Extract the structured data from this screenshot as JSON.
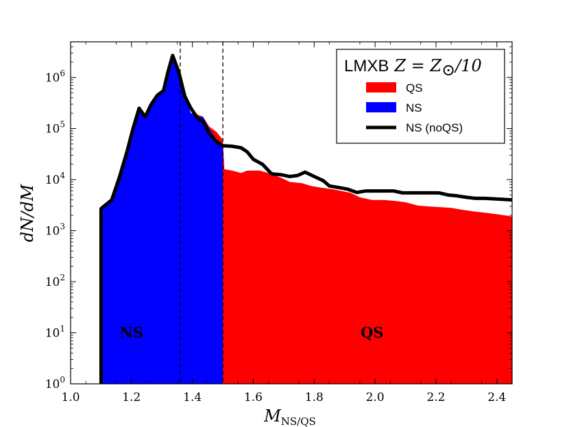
{
  "chart_data": {
    "type": "area",
    "xlabel": "M",
    "xlabel_subscript": "NS/QS",
    "ylabel": "dN/dM",
    "xlim": [
      1.0,
      2.45
    ],
    "ylim": [
      1,
      5000000
    ],
    "yscale": "log",
    "xticks": [
      "1.0",
      "1.2",
      "1.4",
      "1.6",
      "1.8",
      "2.0",
      "2.2",
      "2.4"
    ],
    "xtick_values": [
      1.0,
      1.2,
      1.4,
      1.6,
      1.8,
      2.0,
      2.2,
      2.4
    ],
    "yticks": [
      {
        "base": "10",
        "exp": "0",
        "value": 1
      },
      {
        "base": "10",
        "exp": "1",
        "value": 10
      },
      {
        "base": "10",
        "exp": "2",
        "value": 100
      },
      {
        "base": "10",
        "exp": "3",
        "value": 1000
      },
      {
        "base": "10",
        "exp": "4",
        "value": 10000
      },
      {
        "base": "10",
        "exp": "5",
        "value": 100000
      },
      {
        "base": "10",
        "exp": "6",
        "value": 1000000
      }
    ],
    "legend": {
      "title": "LMXB",
      "title_math": "Z = Z",
      "title_math_sub": "⊙",
      "title_math_tail": "/10",
      "position": "top-right",
      "entries": [
        {
          "label": "QS",
          "color": "#ff0000",
          "kind": "patch"
        },
        {
          "label": "NS",
          "color": "#0000ff",
          "kind": "patch"
        },
        {
          "label": "NS (noQS)",
          "color": "#000000",
          "kind": "line"
        }
      ]
    },
    "vlines": [
      1.36,
      1.5
    ],
    "annotations": [
      {
        "text": "NS",
        "x": 1.2,
        "y": 8
      },
      {
        "text": "QS",
        "x": 1.99,
        "y": 8
      }
    ],
    "series": [
      {
        "name": "NS",
        "color": "#0000ff",
        "kind": "fill",
        "x": [
          1.1,
          1.135,
          1.16,
          1.185,
          1.205,
          1.225,
          1.245,
          1.265,
          1.285,
          1.305,
          1.32,
          1.335,
          1.355,
          1.375,
          1.395,
          1.42,
          1.435,
          1.455,
          1.48,
          1.5
        ],
        "y": [
          2700,
          4000,
          11000,
          35000,
          100000,
          250000,
          170000,
          300000,
          450000,
          550000,
          1300000,
          2700000,
          1300000,
          430000,
          200000,
          170000,
          170000,
          100000,
          60000,
          50000
        ]
      },
      {
        "name": "QS",
        "color": "#ff0000",
        "kind": "fill",
        "x": [
          1.395,
          1.42,
          1.435,
          1.455,
          1.48,
          1.5,
          1.505,
          1.53,
          1.56,
          1.58,
          1.62,
          1.65,
          1.69,
          1.72,
          1.76,
          1.79,
          1.82,
          1.86,
          1.89,
          1.92,
          1.95,
          1.99,
          2.03,
          2.07,
          2.1,
          2.14,
          2.17,
          2.21,
          2.25,
          2.28,
          2.32,
          2.36,
          2.4,
          2.45
        ],
        "y": [
          200000,
          185000,
          170000,
          110000,
          85000,
          60000,
          16000,
          15000,
          13500,
          15000,
          15000,
          13500,
          11000,
          9000,
          8500,
          7500,
          7000,
          6500,
          6000,
          5500,
          4500,
          4000,
          4000,
          3800,
          3600,
          3100,
          3000,
          2900,
          2800,
          2600,
          2400,
          2250,
          2100,
          1900
        ]
      },
      {
        "name": "NS (noQS)",
        "color": "#000000",
        "kind": "line",
        "x": [
          1.1,
          1.1,
          1.135,
          1.16,
          1.185,
          1.205,
          1.225,
          1.245,
          1.265,
          1.285,
          1.305,
          1.32,
          1.335,
          1.355,
          1.375,
          1.395,
          1.42,
          1.435,
          1.455,
          1.48,
          1.5,
          1.53,
          1.56,
          1.58,
          1.6,
          1.63,
          1.66,
          1.69,
          1.72,
          1.745,
          1.77,
          1.8,
          1.83,
          1.85,
          1.88,
          1.91,
          1.94,
          1.97,
          2.0,
          2.03,
          2.06,
          2.09,
          2.12,
          2.15,
          2.18,
          2.21,
          2.24,
          2.27,
          2.3,
          2.33,
          2.36,
          2.39,
          2.42,
          2.45
        ],
        "y": [
          1,
          2700,
          4000,
          11000,
          35000,
          100000,
          250000,
          170000,
          300000,
          450000,
          550000,
          1300000,
          2700000,
          1300000,
          430000,
          250000,
          150000,
          140000,
          80000,
          55000,
          46000,
          45000,
          42000,
          35000,
          25000,
          20000,
          13000,
          12500,
          11500,
          12000,
          14000,
          11500,
          9500,
          7500,
          7000,
          6500,
          5600,
          6000,
          6000,
          6000,
          6000,
          5500,
          5500,
          5500,
          5500,
          5500,
          5000,
          4800,
          4500,
          4300,
          4300,
          4200,
          4100,
          4000
        ]
      }
    ]
  }
}
